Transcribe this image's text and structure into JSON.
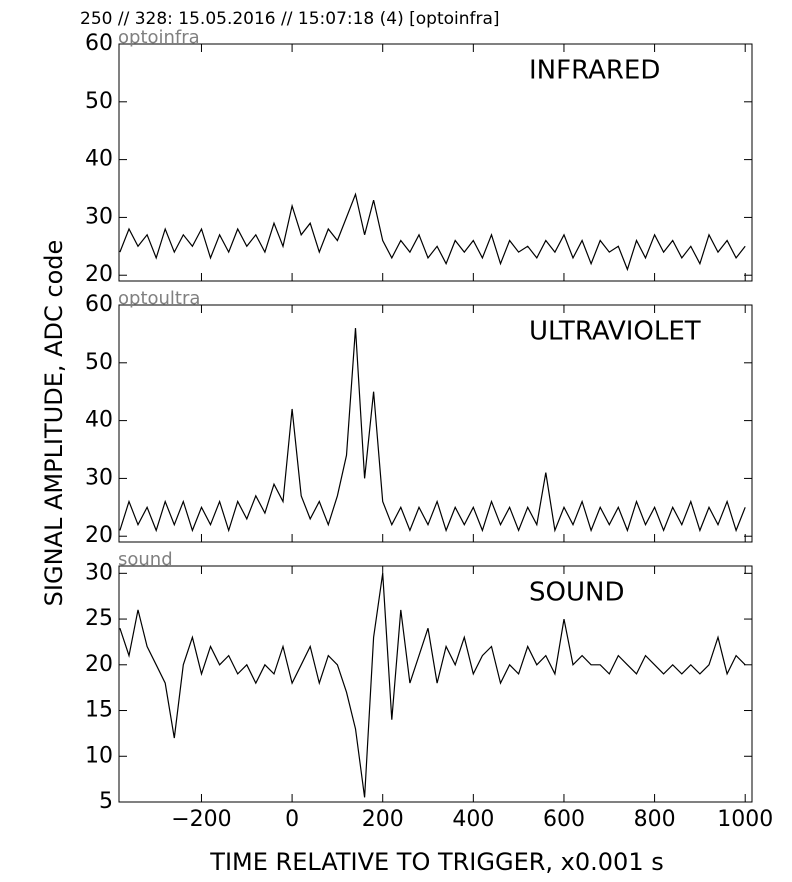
{
  "title": "250 // 328:   15.05.2016 // 15:07:18 (4)  [optoinfra]",
  "ylabel": "SIGNAL AMPLITUDE,  ADC code",
  "xlabel": "TIME RELATIVE TO TRIGGER,   x0.001 s",
  "chart_data": [
    {
      "type": "line",
      "annotation": "optoinfra",
      "title": "INFRARED",
      "color": "#000000",
      "x": [
        -380,
        -360,
        -340,
        -320,
        -300,
        -280,
        -260,
        -240,
        -220,
        -200,
        -180,
        -160,
        -140,
        -120,
        -100,
        -80,
        -60,
        -40,
        -20,
        0,
        20,
        40,
        60,
        80,
        100,
        120,
        140,
        160,
        180,
        200,
        220,
        240,
        260,
        280,
        300,
        320,
        340,
        360,
        380,
        400,
        420,
        440,
        460,
        480,
        500,
        520,
        540,
        560,
        580,
        600,
        620,
        640,
        660,
        680,
        700,
        720,
        740,
        760,
        780,
        800,
        820,
        840,
        860,
        880,
        900,
        920,
        940,
        960,
        980,
        1000
      ],
      "values": [
        24,
        28,
        25,
        27,
        23,
        28,
        24,
        27,
        25,
        28,
        23,
        27,
        24,
        28,
        25,
        27,
        24,
        29,
        25,
        32,
        27,
        29,
        24,
        28,
        26,
        30,
        34,
        27,
        33,
        26,
        23,
        26,
        24,
        27,
        23,
        25,
        22,
        26,
        24,
        26,
        23,
        27,
        22,
        26,
        24,
        25,
        23,
        26,
        24,
        27,
        23,
        26,
        22,
        26,
        24,
        25,
        21,
        26,
        23,
        27,
        24,
        26,
        23,
        25,
        22,
        27,
        24,
        26,
        23,
        25
      ],
      "xlim": [
        -382,
        1015
      ],
      "ylim": [
        19,
        60
      ],
      "xticks": [
        -200,
        0,
        200,
        400,
        600,
        800,
        1000
      ],
      "yticks": [
        20,
        30,
        40,
        50,
        60
      ]
    },
    {
      "type": "line",
      "annotation": "optoultra",
      "title": "ULTRAVIOLET",
      "color": "#000000",
      "x": [
        -380,
        -360,
        -340,
        -320,
        -300,
        -280,
        -260,
        -240,
        -220,
        -200,
        -180,
        -160,
        -140,
        -120,
        -100,
        -80,
        -60,
        -40,
        -20,
        0,
        20,
        40,
        60,
        80,
        100,
        120,
        140,
        160,
        180,
        200,
        220,
        240,
        260,
        280,
        300,
        320,
        340,
        360,
        380,
        400,
        420,
        440,
        460,
        480,
        500,
        520,
        540,
        560,
        580,
        600,
        620,
        640,
        660,
        680,
        700,
        720,
        740,
        760,
        780,
        800,
        820,
        840,
        860,
        880,
        900,
        920,
        940,
        960,
        980,
        1000
      ],
      "values": [
        21,
        26,
        22,
        25,
        21,
        26,
        22,
        26,
        21,
        25,
        22,
        26,
        21,
        26,
        23,
        27,
        24,
        29,
        26,
        42,
        27,
        23,
        26,
        22,
        27,
        34,
        56,
        30,
        45,
        26,
        22,
        25,
        21,
        25,
        22,
        26,
        21,
        25,
        22,
        25,
        21,
        26,
        22,
        25,
        21,
        25,
        22,
        31,
        21,
        25,
        22,
        26,
        21,
        25,
        22,
        25,
        21,
        26,
        22,
        25,
        21,
        25,
        22,
        26,
        21,
        25,
        22,
        26,
        21,
        25
      ],
      "xlim": [
        -382,
        1015
      ],
      "ylim": [
        19,
        60
      ],
      "xticks": [
        -200,
        0,
        200,
        400,
        600,
        800,
        1000
      ],
      "yticks": [
        20,
        30,
        40,
        50,
        60
      ]
    },
    {
      "type": "line",
      "annotation": "sound",
      "title": "SOUND",
      "color": "#000000",
      "x": [
        -380,
        -360,
        -340,
        -320,
        -300,
        -280,
        -260,
        -240,
        -220,
        -200,
        -180,
        -160,
        -140,
        -120,
        -100,
        -80,
        -60,
        -40,
        -20,
        0,
        20,
        40,
        60,
        80,
        100,
        120,
        140,
        160,
        180,
        200,
        220,
        240,
        260,
        280,
        300,
        320,
        340,
        360,
        380,
        400,
        420,
        440,
        460,
        480,
        500,
        520,
        540,
        560,
        580,
        600,
        620,
        640,
        660,
        680,
        700,
        720,
        740,
        760,
        780,
        800,
        820,
        840,
        860,
        880,
        900,
        920,
        940,
        960,
        980,
        1000
      ],
      "values": [
        24,
        21,
        26,
        22,
        20,
        18,
        12,
        20,
        23,
        19,
        22,
        20,
        21,
        19,
        20,
        18,
        20,
        19,
        22,
        18,
        20,
        22,
        18,
        21,
        20,
        17,
        13,
        5.5,
        23,
        30,
        14,
        26,
        18,
        21,
        24,
        18,
        22,
        20,
        23,
        19,
        21,
        22,
        18,
        20,
        19,
        22,
        20,
        21,
        19,
        25,
        20,
        21,
        20,
        20,
        19,
        21,
        20,
        19,
        21,
        20,
        19,
        20,
        19,
        20,
        19,
        20,
        23,
        19,
        21,
        20
      ],
      "xlim": [
        -382,
        1015
      ],
      "ylim": [
        5,
        30.8
      ],
      "xticks": [
        {
          "value": -200,
          "label": "−200"
        },
        0,
        200,
        400,
        600,
        800,
        1000
      ],
      "yticks": [
        5,
        10,
        15,
        20,
        25,
        30
      ]
    }
  ]
}
